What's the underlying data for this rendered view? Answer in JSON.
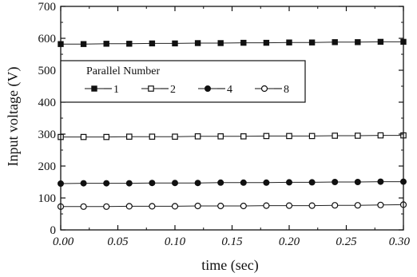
{
  "chart_data": {
    "type": "line",
    "title": "",
    "xlabel": "time (sec)",
    "ylabel": "Input voltage (V)",
    "xlim": [
      0.0,
      0.3
    ],
    "ylim": [
      0,
      700
    ],
    "x_ticks": [
      "0.00",
      "0.05",
      "0.10",
      "0.15",
      "0.20",
      "0.25",
      "0.30"
    ],
    "y_ticks": [
      "0",
      "100",
      "200",
      "300",
      "400",
      "500",
      "600",
      "700"
    ],
    "grid": false,
    "legend": {
      "title": "Parallel Number",
      "placement": "upper-left"
    },
    "x": [
      0.0,
      0.02,
      0.04,
      0.06,
      0.08,
      0.1,
      0.12,
      0.14,
      0.16,
      0.18,
      0.2,
      0.22,
      0.24,
      0.26,
      0.28,
      0.3
    ],
    "series": [
      {
        "name": "1",
        "marker": "filled-square",
        "values": [
          582,
          582,
          583,
          583,
          584,
          584,
          585,
          585,
          586,
          586,
          587,
          587,
          588,
          588,
          589,
          589
        ]
      },
      {
        "name": "2",
        "marker": "open-square",
        "values": [
          291,
          291,
          291,
          292,
          292,
          292,
          293,
          293,
          293,
          294,
          294,
          294,
          295,
          295,
          296,
          296
        ]
      },
      {
        "name": "4",
        "marker": "filled-circle",
        "values": [
          145,
          146,
          146,
          146,
          147,
          147,
          147,
          148,
          148,
          148,
          149,
          149,
          150,
          150,
          151,
          151
        ]
      },
      {
        "name": "8",
        "marker": "open-circle",
        "values": [
          73,
          73,
          73,
          74,
          74,
          74,
          75,
          75,
          75,
          76,
          76,
          76,
          77,
          77,
          78,
          79
        ]
      }
    ]
  }
}
